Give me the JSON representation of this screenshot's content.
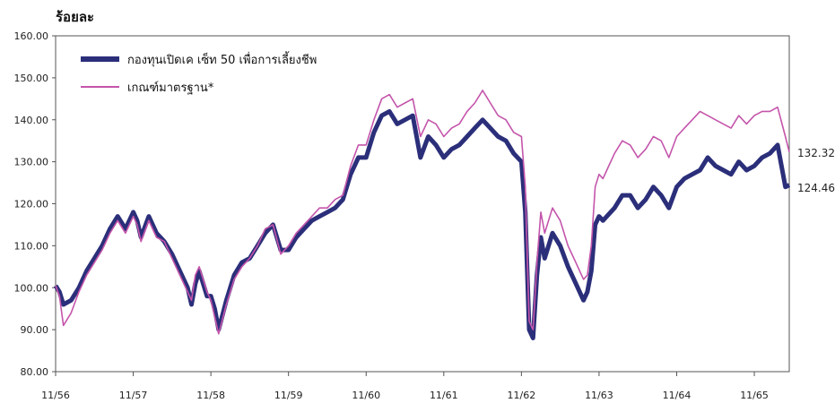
{
  "chart_data": {
    "type": "line",
    "ylabel": "ร้อยละ",
    "ylim": [
      80,
      160
    ],
    "yticks": [
      "80.00",
      "90.00",
      "100.00",
      "110.00",
      "120.00",
      "130.00",
      "140.00",
      "150.00",
      "160.00"
    ],
    "xticks": [
      "11/56",
      "11/57",
      "11/58",
      "11/59",
      "11/60",
      "11/61",
      "11/62",
      "11/63",
      "11/64",
      "11/65"
    ],
    "legend_position": "top-left",
    "grid": false,
    "series": [
      {
        "name": "กองทุนเปิดเค เซ็ท 50 เพื่อการเลี้ยงชีพ",
        "color": "#2b2f7a",
        "end_value_label": "124.46",
        "x": [
          0,
          0.05,
          0.1,
          0.2,
          0.3,
          0.4,
          0.5,
          0.6,
          0.7,
          0.8,
          0.9,
          1.0,
          1.05,
          1.1,
          1.2,
          1.3,
          1.4,
          1.5,
          1.6,
          1.7,
          1.75,
          1.8,
          1.85,
          1.9,
          1.95,
          2.0,
          2.05,
          2.1,
          2.2,
          2.3,
          2.4,
          2.5,
          2.6,
          2.7,
          2.8,
          2.9,
          3.0,
          3.1,
          3.2,
          3.3,
          3.4,
          3.5,
          3.6,
          3.7,
          3.8,
          3.9,
          4.0,
          4.1,
          4.2,
          4.3,
          4.4,
          4.5,
          4.6,
          4.7,
          4.8,
          4.9,
          5.0,
          5.1,
          5.2,
          5.3,
          5.4,
          5.5,
          5.6,
          5.7,
          5.8,
          5.9,
          6.0,
          6.05,
          6.1,
          6.15,
          6.2,
          6.25,
          6.3,
          6.4,
          6.5,
          6.6,
          6.7,
          6.8,
          6.85,
          6.9,
          6.95,
          7.0,
          7.05,
          7.1,
          7.2,
          7.3,
          7.4,
          7.5,
          7.6,
          7.7,
          7.8,
          7.9,
          8.0,
          8.1,
          8.2,
          8.3,
          8.4,
          8.5,
          8.6,
          8.7,
          8.8,
          8.9,
          9.0,
          9.1,
          9.2,
          9.3,
          9.4,
          9.45
        ],
        "values": [
          100.5,
          99,
          96,
          97,
          100,
          104,
          107,
          110,
          114,
          117,
          114,
          118,
          116,
          112,
          117,
          113,
          111,
          108,
          104,
          100,
          96,
          101,
          104,
          101,
          98,
          98,
          95,
          90,
          97,
          103,
          106,
          107,
          110,
          113,
          115,
          109,
          109,
          112,
          114,
          116,
          117,
          118,
          119,
          121,
          127,
          131,
          131,
          137,
          141,
          142,
          139,
          140,
          141,
          131,
          136,
          134,
          131,
          133,
          134,
          136,
          138,
          140,
          138,
          136,
          135,
          132,
          130,
          118,
          90,
          88,
          103,
          112,
          107,
          113,
          110,
          105,
          101,
          97,
          99,
          104,
          115,
          117,
          116,
          117,
          119,
          122,
          122,
          119,
          121,
          124,
          122,
          119,
          124,
          126,
          127,
          128,
          131,
          129,
          128,
          127,
          130,
          128,
          129,
          131,
          132,
          134,
          124,
          124.46
        ]
      },
      {
        "name": "เกณฑ์มาตรฐาน*",
        "color": "#c455ab",
        "end_value_label": "132.32",
        "x": [
          0,
          0.05,
          0.1,
          0.2,
          0.3,
          0.4,
          0.5,
          0.6,
          0.7,
          0.8,
          0.9,
          1.0,
          1.05,
          1.1,
          1.2,
          1.3,
          1.4,
          1.5,
          1.6,
          1.7,
          1.75,
          1.8,
          1.85,
          1.9,
          1.95,
          2.0,
          2.05,
          2.1,
          2.2,
          2.3,
          2.4,
          2.5,
          2.6,
          2.7,
          2.8,
          2.9,
          3.0,
          3.1,
          3.2,
          3.3,
          3.4,
          3.5,
          3.6,
          3.7,
          3.8,
          3.9,
          4.0,
          4.1,
          4.2,
          4.3,
          4.4,
          4.5,
          4.6,
          4.7,
          4.8,
          4.9,
          5.0,
          5.1,
          5.2,
          5.3,
          5.4,
          5.5,
          5.6,
          5.7,
          5.8,
          5.9,
          6.0,
          6.05,
          6.1,
          6.15,
          6.2,
          6.25,
          6.3,
          6.4,
          6.5,
          6.6,
          6.7,
          6.8,
          6.85,
          6.9,
          6.95,
          7.0,
          7.05,
          7.1,
          7.2,
          7.3,
          7.4,
          7.5,
          7.6,
          7.7,
          7.8,
          7.9,
          8.0,
          8.1,
          8.2,
          8.3,
          8.4,
          8.5,
          8.6,
          8.7,
          8.8,
          8.9,
          9.0,
          9.1,
          9.2,
          9.3,
          9.4,
          9.45
        ],
        "values": [
          100.5,
          98,
          91,
          94,
          99,
          103,
          106,
          109,
          113,
          116,
          113,
          117,
          115,
          111,
          116,
          112,
          111,
          107,
          103,
          99,
          97,
          103,
          105,
          102,
          99,
          97,
          93,
          89,
          96,
          102,
          105,
          107,
          110,
          114,
          115,
          108,
          110,
          113,
          115,
          117,
          119,
          119,
          121,
          122,
          129,
          134,
          134,
          140,
          145,
          146,
          143,
          144,
          145,
          136,
          140,
          139,
          136,
          138,
          139,
          142,
          144,
          147,
          144,
          141,
          140,
          137,
          136,
          124,
          92,
          90,
          106,
          118,
          113,
          119,
          116,
          110,
          106,
          102,
          103,
          110,
          124,
          127,
          126,
          128,
          132,
          135,
          134,
          131,
          133,
          136,
          135,
          131,
          136,
          138,
          140,
          142,
          141,
          140,
          139,
          138,
          141,
          139,
          141,
          142,
          142,
          143,
          136,
          132.32
        ]
      }
    ]
  }
}
